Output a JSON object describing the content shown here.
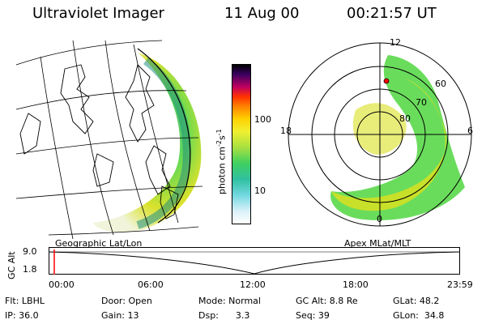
{
  "header": {
    "instrument": "Ultraviolet Imager",
    "date": "11 Aug 00",
    "time": "00:21:57 UT"
  },
  "colorbar": {
    "label": "photon cm",
    "label_sup1": "-2",
    "label_mid": "s",
    "label_sup2": "-1",
    "ticks": [
      "100",
      "10"
    ]
  },
  "geo_map": {
    "label": "Geographic Lat/Lon"
  },
  "polar_plot": {
    "label": "Apex MLat/MLT",
    "mlt_labels": {
      "top": "12",
      "left": "18",
      "right": "6",
      "bottom": "0"
    },
    "lat_labels": [
      "60",
      "70",
      "80"
    ]
  },
  "altitude_plot": {
    "ylabel": "GC Alt",
    "yticks": [
      "9.0",
      "1.8"
    ],
    "xticks": [
      "00:00",
      "06:00",
      "12:00",
      "18:00",
      "23:59"
    ]
  },
  "info": {
    "flt": "Flt: LBHL",
    "door": "Door: Open",
    "mode": "Mode: Normal",
    "gc_alt": "GC Alt: 8.8 Re",
    "glat": "GLat:  48.2",
    "ip": "IP: 36.0",
    "gain": "Gain: 13",
    "dsp": "Dsp:      3.3",
    "seq": "Seq: 39",
    "glon": "GLon:  34.8"
  },
  "colors": {
    "marker": "#ff0000",
    "aurora_green": "#5ad84a",
    "aurora_yellow": "#d8e020"
  }
}
